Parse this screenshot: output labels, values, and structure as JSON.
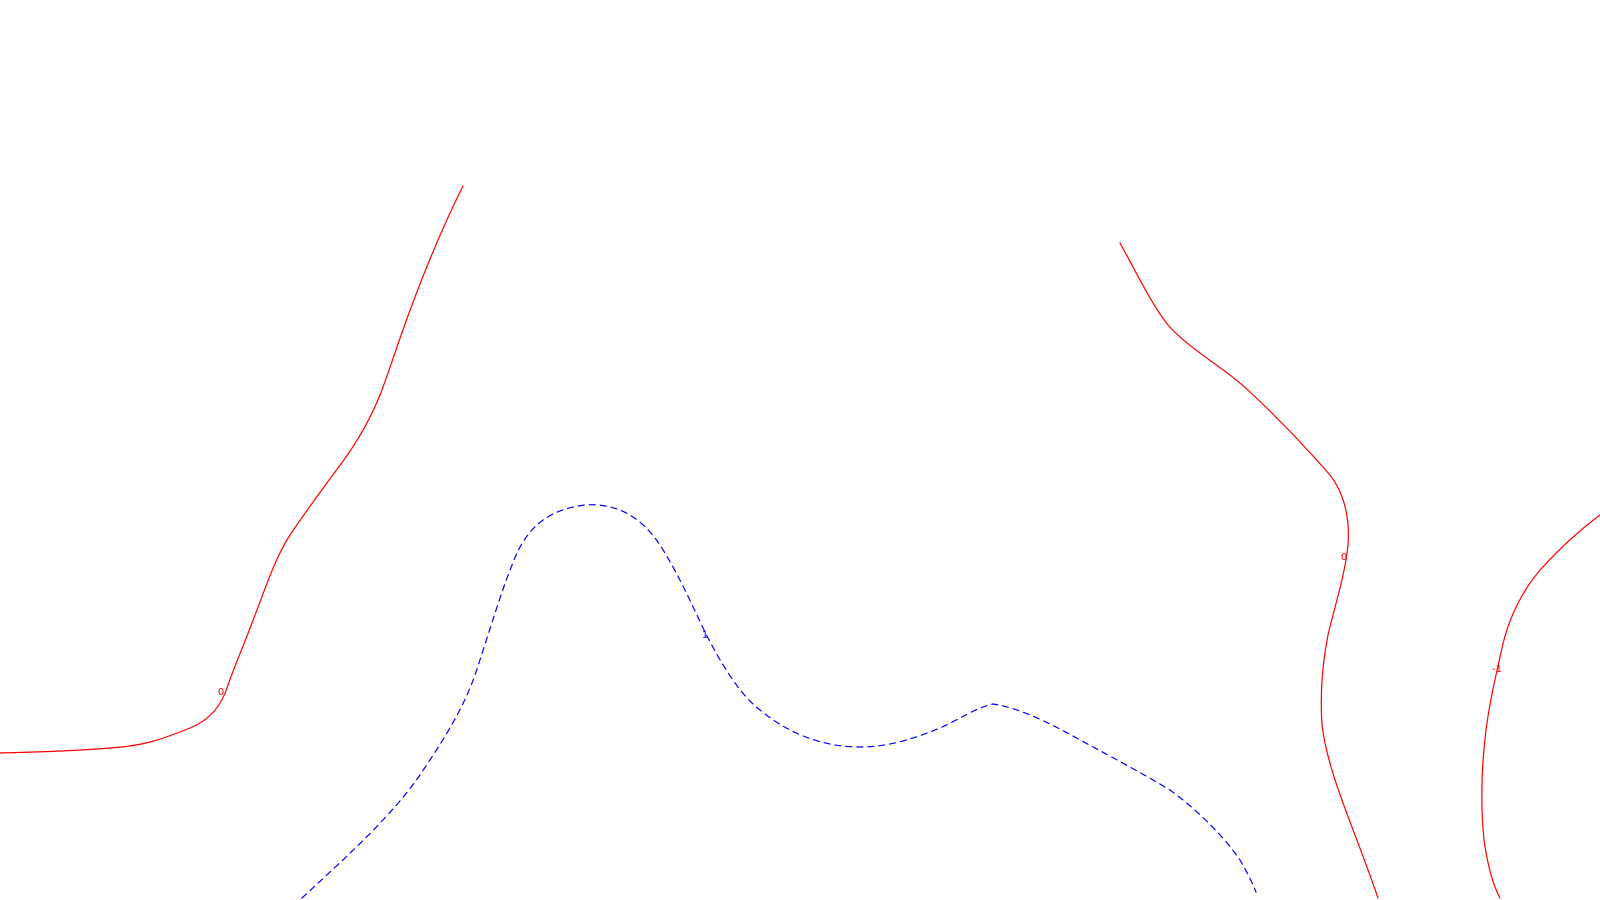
{
  "map": {
    "background_color": "#ffffff",
    "contours": [
      {
        "id": "contour-zero-west",
        "level": "0",
        "color": "#ff0000",
        "style": "solid"
      },
      {
        "id": "contour-zero-east",
        "level": "0",
        "color": "#ff0000",
        "style": "solid"
      },
      {
        "id": "contour-minus-one",
        "level": "-1",
        "color": "#ff0000",
        "style": "solid"
      },
      {
        "id": "contour-one",
        "level": "1",
        "color": "#0000ff",
        "style": "dashed"
      }
    ]
  }
}
